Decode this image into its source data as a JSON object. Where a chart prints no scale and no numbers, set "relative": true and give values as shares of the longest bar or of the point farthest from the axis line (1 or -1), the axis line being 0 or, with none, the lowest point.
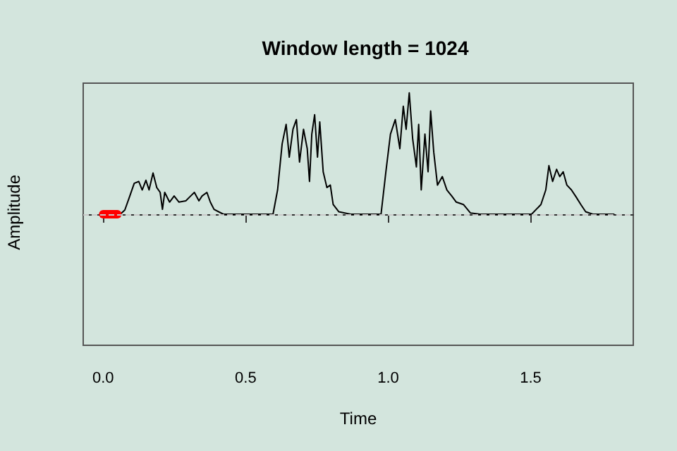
{
  "chart_data": {
    "type": "line",
    "title": "Window length = 1024",
    "xlabel": "Time",
    "ylabel": "Amplitude",
    "relative": true,
    "xlim": [
      -0.07,
      1.86
    ],
    "xticks": [
      {
        "value": 0,
        "label": "0.0"
      },
      0.5,
      {
        "value": 1,
        "label": "1.0"
      },
      1.5
    ],
    "tick_labels": "x",
    "grid": false,
    "ref_lines": [
      {
        "axis": "y",
        "value": 0,
        "color": "#c8c8c8",
        "line_style": "dashed"
      }
    ],
    "series": [
      {
        "color": "#000000",
        "x": [
          0.06,
          0.076,
          0.092,
          0.109,
          0.125,
          0.137,
          0.15,
          0.161,
          0.175,
          0.188,
          0.2,
          0.208,
          0.216,
          0.233,
          0.249,
          0.266,
          0.29,
          0.307,
          0.32,
          0.336,
          0.347,
          0.364,
          0.376,
          0.389,
          0.422,
          0.596,
          0.612,
          0.628,
          0.642,
          0.653,
          0.666,
          0.678,
          0.689,
          0.703,
          0.716,
          0.724,
          0.732,
          0.742,
          0.752,
          0.76,
          0.772,
          0.785,
          0.797,
          0.807,
          0.827,
          0.868,
          0.975,
          0.992,
          1.008,
          1.025,
          1.041,
          1.053,
          1.063,
          1.074,
          1.086,
          1.099,
          1.107,
          1.116,
          1.129,
          1.14,
          1.149,
          1.16,
          1.173,
          1.19,
          1.206,
          1.223,
          1.239,
          1.264,
          1.289,
          1.322,
          1.503,
          1.536,
          1.553,
          1.564,
          1.577,
          1.591,
          1.602,
          1.614,
          1.627,
          1.643,
          1.66,
          1.676,
          1.693,
          1.718,
          1.792
        ],
        "values": [
          0,
          0.035,
          0.14,
          0.255,
          0.27,
          0.2,
          0.28,
          0.2,
          0.34,
          0.22,
          0.18,
          0.04,
          0.18,
          0.1,
          0.15,
          0.1,
          0.11,
          0.15,
          0.18,
          0.11,
          0.15,
          0.18,
          0.1,
          0.04,
          0,
          0,
          0.2,
          0.58,
          0.74,
          0.47,
          0.7,
          0.78,
          0.43,
          0.7,
          0.54,
          0.27,
          0.66,
          0.82,
          0.47,
          0.76,
          0.35,
          0.22,
          0.24,
          0.08,
          0.02,
          0,
          0,
          0.35,
          0.66,
          0.78,
          0.54,
          0.89,
          0.7,
          1,
          0.62,
          0.39,
          0.74,
          0.2,
          0.66,
          0.35,
          0.85,
          0.51,
          0.24,
          0.31,
          0.2,
          0.15,
          0.1,
          0.08,
          0.01,
          0,
          0,
          0.08,
          0.2,
          0.4,
          0.27,
          0.37,
          0.31,
          0.35,
          0.24,
          0.2,
          0.14,
          0.08,
          0.02,
          0,
          0
        ]
      },
      {
        "color": "#ff0000",
        "x": [
          0,
          0.05
        ],
        "values": [
          0,
          0
        ]
      }
    ]
  }
}
